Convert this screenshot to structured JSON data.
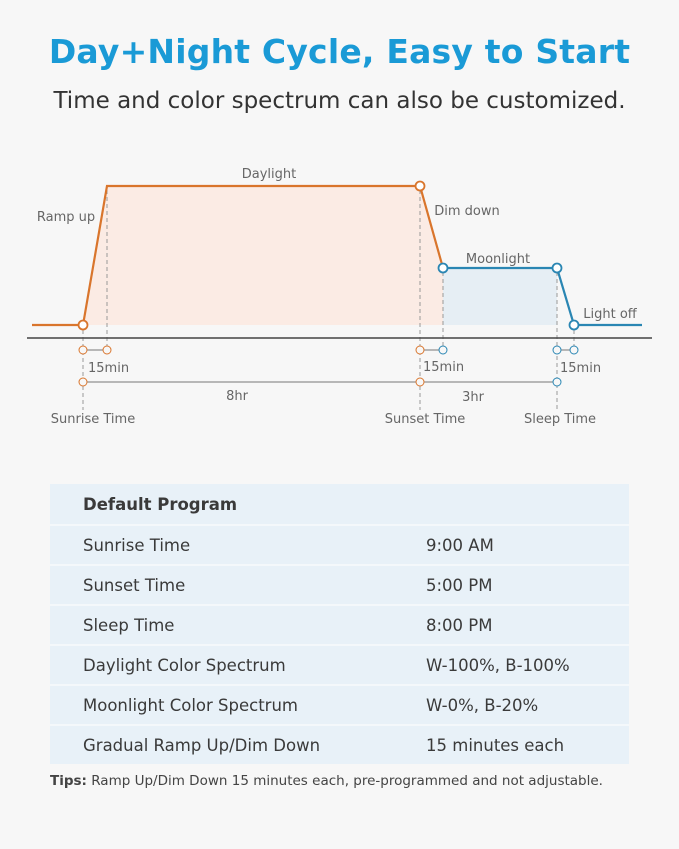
{
  "title": "Day+Night Cycle, Easy to Start",
  "subtitle": "Time and color spectrum can also be customized.",
  "diagram": {
    "phases": {
      "ramp_up": "Ramp up",
      "daylight": "Daylight",
      "dim_down": "Dim down",
      "moonlight": "Moonlight",
      "light_off": "Light off"
    },
    "durations": {
      "ramp": "15min",
      "dim": "15min",
      "off": "15min",
      "day": "8hr",
      "moon": "3hr"
    },
    "markers": {
      "sunrise": "Sunrise Time",
      "sunset": "Sunset Time",
      "sleep": "Sleep Time"
    },
    "colors": {
      "daylight": "#d9752c",
      "moonlight": "#2a86b3",
      "daylight_fill": "#fbebe4",
      "moonlight_fill": "#e6eef4"
    }
  },
  "table": {
    "header": "Default Program",
    "rows": [
      {
        "label": "Sunrise Time",
        "value": "9:00 AM"
      },
      {
        "label": "Sunset Time",
        "value": "5:00 PM"
      },
      {
        "label": "Sleep Time",
        "value": "8:00 PM"
      },
      {
        "label": "Daylight Color Spectrum",
        "value": "W-100%, B-100%"
      },
      {
        "label": "Moonlight Color Spectrum",
        "value": "W-0%, B-20%"
      },
      {
        "label": "Gradual Ramp Up/Dim Down",
        "value": "15 minutes each"
      }
    ]
  },
  "tips": {
    "label": "Tips:",
    "text": " Ramp Up/Dim Down 15 minutes each, pre-programmed and not adjustable."
  }
}
